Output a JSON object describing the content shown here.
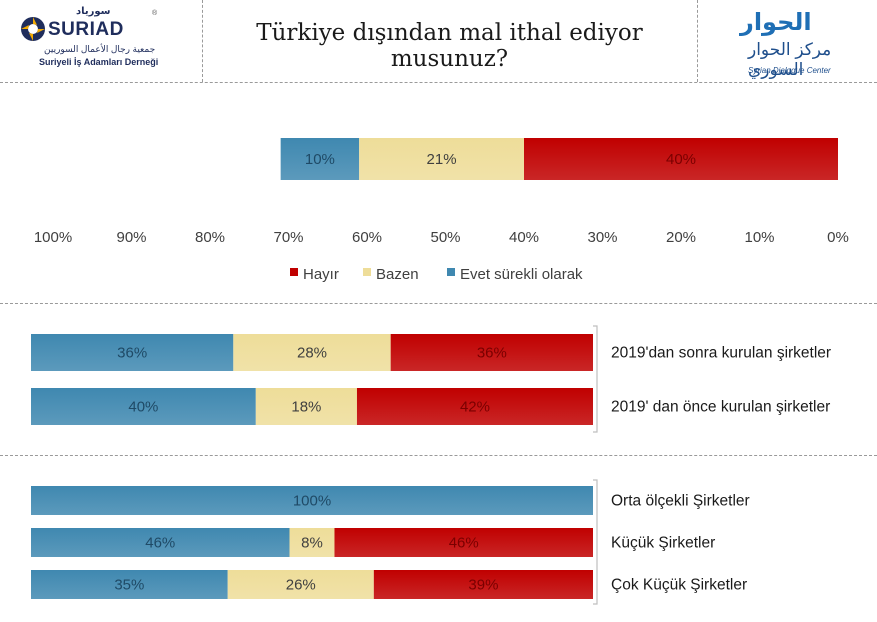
{
  "header": {
    "title": "Türkiye dışından mal ithal ediyor musunuz?",
    "left_logo": {
      "name": "SURIAD",
      "arabic_name": "سورياد",
      "arabic_subtitle": "جمعية رجال الأعمال السوريين",
      "turkish_subtitle": "Suriyeli İş Adamları Derneği",
      "mark": "®"
    },
    "right_logo": {
      "arabic_name": "الحوار",
      "arabic_subtitle": "مركز الحوار السوري",
      "english_name": "Syrian Dialogue Center"
    }
  },
  "colors": {
    "hayir": "#c00000",
    "bazen": "#eedd99",
    "evet": "#3f88b0"
  },
  "chart_data": [
    {
      "type": "bar",
      "orientation": "horizontal",
      "stacked": true,
      "categories": [
        ""
      ],
      "x_axis": {
        "reversed": true,
        "range": [
          0,
          100
        ],
        "ticks": [
          "100%",
          "90%",
          "80%",
          "70%",
          "60%",
          "50%",
          "40%",
          "30%",
          "20%",
          "10%",
          "0%"
        ]
      },
      "legend": {
        "position": "bottom",
        "entries": [
          "Hayır",
          "Bazen",
          "Evet sürekli olarak"
        ]
      },
      "series": [
        {
          "name": "Hayır",
          "values": [
            40
          ],
          "labels": [
            "40%"
          ]
        },
        {
          "name": "Bazen",
          "values": [
            21
          ],
          "labels": [
            "21%"
          ]
        },
        {
          "name": "Evet sürekli olarak",
          "values": [
            10
          ],
          "labels": [
            "10%"
          ]
        }
      ]
    },
    {
      "type": "bar",
      "orientation": "horizontal",
      "stacked": true,
      "categories": [
        "2019'dan sonra kurulan şirketler",
        "2019' dan önce kurulan şirketler"
      ],
      "series": [
        {
          "name": "Hayır",
          "values": [
            36,
            42
          ],
          "labels": [
            "36%",
            "42%"
          ]
        },
        {
          "name": "Bazen",
          "values": [
            28,
            18
          ],
          "labels": [
            "28%",
            "18%"
          ]
        },
        {
          "name": "Evet sürekli olarak",
          "values": [
            36,
            40
          ],
          "labels": [
            "36%",
            "40%"
          ]
        }
      ]
    },
    {
      "type": "bar",
      "orientation": "horizontal",
      "stacked": true,
      "categories": [
        "Orta ölçekli Şirketler",
        "Küçük Şirketler",
        "Çok Küçük Şirketler"
      ],
      "series": [
        {
          "name": "Hayır",
          "values": [
            0,
            46,
            39
          ],
          "labels": [
            "",
            "46%",
            "39%"
          ]
        },
        {
          "name": "Bazen",
          "values": [
            0,
            8,
            26
          ],
          "labels": [
            "",
            "8%",
            "26%"
          ]
        },
        {
          "name": "Evet sürekli olarak",
          "values": [
            100,
            46,
            35
          ],
          "labels": [
            "100%",
            "46%",
            "35%"
          ]
        }
      ]
    }
  ]
}
